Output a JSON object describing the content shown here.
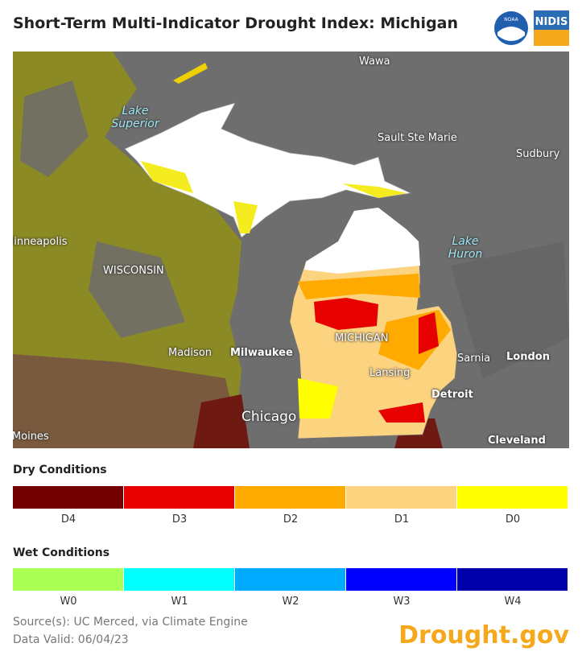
{
  "header": {
    "title": "Short-Term Multi-Indicator Drought Index: Michigan",
    "logos": [
      "NOAA",
      "NIDIS"
    ]
  },
  "map": {
    "labels": [
      "Wawa",
      "Lake Superior",
      "Sault Ste Marie",
      "Sudbury",
      "Minneapolis",
      "WISCONSIN",
      "Lake Huron",
      "MICHIGAN",
      "Madison",
      "Milwaukee",
      "Lansing",
      "Sarnia",
      "London",
      "Detroit",
      "Chicago",
      "Des Moines",
      "Cleveland"
    ]
  },
  "legend": {
    "dry": {
      "title": "Dry Conditions",
      "classes": [
        {
          "label": "D4",
          "color": "#730000"
        },
        {
          "label": "D3",
          "color": "#e60000"
        },
        {
          "label": "D2",
          "color": "#ffaa00"
        },
        {
          "label": "D1",
          "color": "#fcd37f"
        },
        {
          "label": "D0",
          "color": "#ffff00"
        }
      ]
    },
    "wet": {
      "title": "Wet Conditions",
      "classes": [
        {
          "label": "W0",
          "color": "#aaff55"
        },
        {
          "label": "W1",
          "color": "#01ffff"
        },
        {
          "label": "W2",
          "color": "#00aaff"
        },
        {
          "label": "W3",
          "color": "#0000ff"
        },
        {
          "label": "W4",
          "color": "#0000aa"
        }
      ]
    }
  },
  "footer": {
    "source": "Source(s): UC Merced, via Climate Engine",
    "valid": "Data Valid: 06/04/23",
    "brand": "Drought.gov"
  }
}
